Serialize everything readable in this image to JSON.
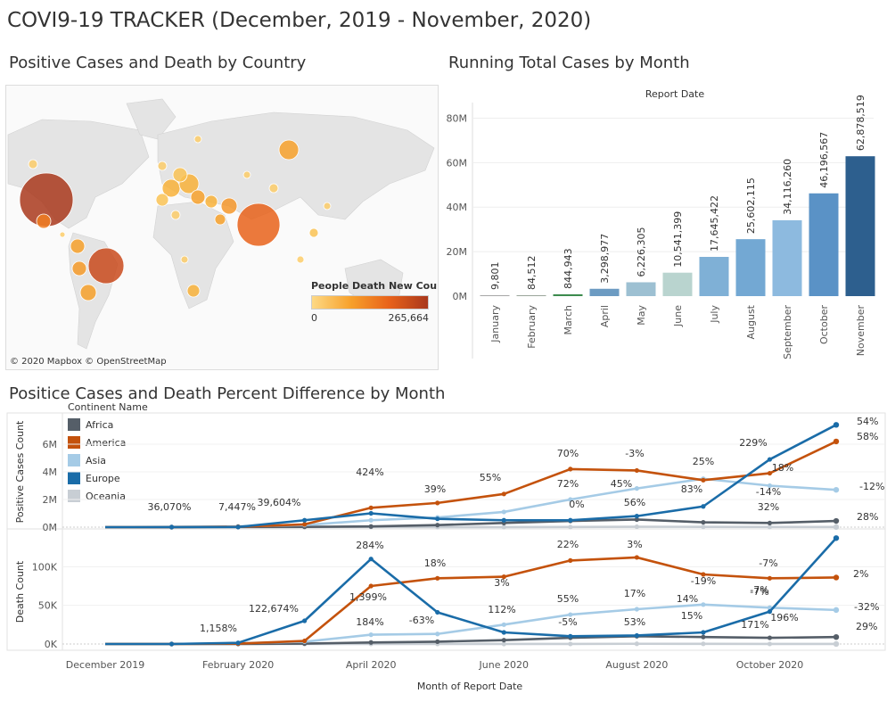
{
  "title": "COVI9-19 TRACKER (December, 2019 - November, 2020)",
  "sections": {
    "map": "Positive Cases and Death by Country",
    "bars": "Running Total Cases by Month",
    "lines": "Positice Cases and Death Percent Difference by Month"
  },
  "map": {
    "credit": "© 2020 Mapbox © OpenStreetMap",
    "legend_title": "People Death New Count",
    "legend_min": "0",
    "legend_max": "265,664",
    "gradient_colors": [
      "#fdd985",
      "#f7a12b",
      "#e8621a",
      "#a9381c"
    ]
  },
  "chart_data": [
    {
      "type": "bar",
      "title": "Running Total Cases by Month",
      "header": "Report Date",
      "categories": [
        "January",
        "February",
        "March",
        "April",
        "May",
        "June",
        "July",
        "August",
        "September",
        "October",
        "November"
      ],
      "values": [
        9801,
        84512,
        844943,
        3298977,
        6226305,
        10541399,
        17645422,
        25602115,
        34116260,
        46196567,
        62878519
      ],
      "value_labels": [
        "9,801",
        "84,512",
        "844,943",
        "3,298,977",
        "6,226,305",
        "10,541,399",
        "17,645,422",
        "25,602,115",
        "34,116,260",
        "46,196,567",
        "62,878,519"
      ],
      "colors": [
        "#a6a6a6",
        "#9aa59a",
        "#3e8c4f",
        "#6c9bc2",
        "#9dc0d2",
        "#b9d4cf",
        "#7fb0d6",
        "#73a8d3",
        "#8dbadf",
        "#5a92c6",
        "#2d5f8e"
      ],
      "yticks": [
        "0M",
        "20M",
        "40M",
        "60M",
        "80M"
      ],
      "ylim": [
        0,
        85000000
      ]
    },
    {
      "type": "line",
      "title": "Positice Cases and Death Percent Difference by Month",
      "xlabel": "Month of Report Date",
      "x": [
        "December 2019",
        "January 2020",
        "February 2020",
        "March 2020",
        "April 2020",
        "May 2020",
        "June 2020",
        "July 2020",
        "August 2020",
        "September 2020",
        "October 2020",
        "November 2020"
      ],
      "xtick_labels": [
        "December 2019",
        "February 2020",
        "April 2020",
        "June 2020",
        "August 2020",
        "October 2020"
      ],
      "legend_title": "Continent Name",
      "series_colors": {
        "Africa": "#555e68",
        "America": "#c4520c",
        "Asia": "#a5cbe6",
        "Europe": "#1a6ca8",
        "Oceania": "#c8ced4"
      },
      "panels": [
        {
          "ylabel": "Positive Cases Count",
          "yticks": [
            "0M",
            "2M",
            "4M",
            "6M"
          ],
          "ylim": [
            0,
            8000000
          ],
          "series": [
            {
              "name": "Africa",
              "values": [
                0,
                0,
                10000,
                20000,
                50000,
                150000,
                300000,
                450000,
                550000,
                350000,
                300000,
                450000
              ]
            },
            {
              "name": "America",
              "values": [
                0,
                0,
                30000,
                200000,
                1400000,
                1750000,
                2400000,
                4200000,
                4100000,
                3400000,
                3900000,
                6200000
              ]
            },
            {
              "name": "Asia",
              "values": [
                0,
                30000,
                60000,
                150000,
                500000,
                700000,
                1100000,
                2000000,
                2800000,
                3500000,
                3000000,
                2700000
              ]
            },
            {
              "name": "Europe",
              "values": [
                0,
                0,
                10000,
                500000,
                1000000,
                600000,
                500000,
                500000,
                800000,
                1500000,
                4900000,
                7400000
              ]
            },
            {
              "name": "Oceania",
              "values": [
                0,
                0,
                0,
                5000,
                10000,
                5000,
                5000,
                10000,
                30000,
                20000,
                10000,
                10000
              ]
            }
          ],
          "annotations": [
            "36,070%",
            "7,447%",
            "39,604%",
            "424%",
            "39%",
            "55%",
            "70%",
            "-3%",
            "25%",
            "229%",
            "54%",
            "72%",
            "45%",
            "0%",
            "56%",
            "83%",
            "18%",
            "58%",
            "-14%",
            "-12%",
            "32%",
            "28%"
          ]
        },
        {
          "ylabel": "Death Count",
          "yticks": [
            "0K",
            "50K",
            "100K"
          ],
          "ylim": [
            0,
            135000
          ],
          "series": [
            {
              "name": "Africa",
              "values": [
                0,
                0,
                100,
                500,
                2000,
                3000,
                5000,
                8000,
                10000,
                9000,
                8000,
                9000
              ]
            },
            {
              "name": "America",
              "values": [
                0,
                0,
                500,
                4000,
                75000,
                85000,
                87000,
                108000,
                112000,
                90000,
                85000,
                86000
              ]
            },
            {
              "name": "Asia",
              "values": [
                0,
                100,
                1000,
                3000,
                12000,
                13000,
                25000,
                38000,
                45000,
                51000,
                47000,
                44000
              ]
            },
            {
              "name": "Europe",
              "values": [
                0,
                0,
                1500,
                30000,
                110000,
                41000,
                15000,
                10000,
                11000,
                15000,
                42000,
                137000
              ]
            },
            {
              "name": "Oceania",
              "values": [
                0,
                0,
                0,
                10,
                100,
                50,
                20,
                100,
                300,
                200,
                100,
                50
              ]
            }
          ],
          "annotations": [
            "1,158%",
            "122,674%",
            "284%",
            "18%",
            "22%",
            "3%",
            "1,399%",
            "3%",
            "-7%",
            "2%",
            "-19%",
            "184%",
            "-63%",
            "112%",
            "55%",
            "17%",
            "14%",
            "-7%",
            "-7%",
            "-32%",
            "-5%",
            "53%",
            "15%",
            "171%",
            "196%",
            "29%"
          ]
        }
      ]
    }
  ]
}
